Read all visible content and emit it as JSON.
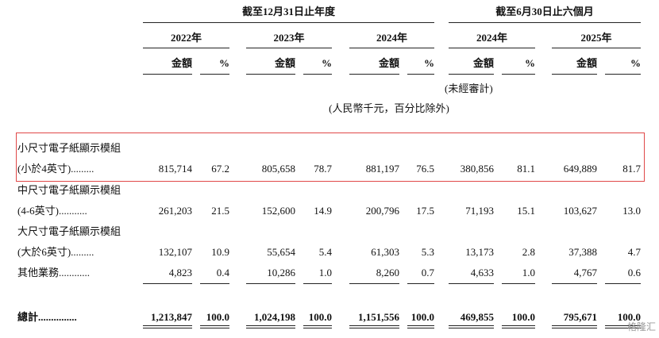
{
  "header": {
    "period_groups": [
      "截至12月31日止年度",
      "截至6月30日止六個月"
    ],
    "columns": [
      {
        "year": "2022年",
        "amount": "金額",
        "percent": "%"
      },
      {
        "year": "2023年",
        "amount": "金額",
        "percent": "%"
      },
      {
        "year": "2024年",
        "amount": "金額",
        "percent": "%"
      },
      {
        "year": "2024年",
        "amount": "金額",
        "percent": "%"
      },
      {
        "year": "2025年",
        "amount": "金額",
        "percent": "%"
      }
    ],
    "unaudited": "(未經審計)",
    "unit_note": "(人民幣千元，百分比除外)"
  },
  "table": {
    "rows": [
      {
        "label": [
          "小尺寸電子紙顯示模組",
          "(小於4英寸)........."
        ],
        "values": [
          "815,714",
          "67.2",
          "805,658",
          "78.7",
          "881,197",
          "76.5",
          "380,856",
          "81.1",
          "649,889",
          "81.7"
        ]
      },
      {
        "label": [
          "中尺寸電子紙顯示模組",
          "(4-6英寸)..........."
        ],
        "values": [
          "261,203",
          "21.5",
          "152,600",
          "14.9",
          "200,796",
          "17.5",
          "71,193",
          "15.1",
          "103,627",
          "13.0"
        ]
      },
      {
        "label": [
          "大尺寸電子紙顯示模組",
          "(大於6英寸)........."
        ],
        "values": [
          "132,107",
          "10.9",
          "55,654",
          "5.4",
          "61,303",
          "5.3",
          "13,173",
          "2.8",
          "37,388",
          "4.7"
        ]
      },
      {
        "label": [
          "其他業務............"
        ],
        "values": [
          "4,823",
          "0.4",
          "10,286",
          "1.0",
          "8,260",
          "0.7",
          "4,633",
          "1.0",
          "4,767",
          "0.6"
        ]
      },
      {
        "label": [
          "總計..............."
        ],
        "values": [
          "1,213,847",
          "100.0",
          "1,024,198",
          "100.0",
          "1,151,556",
          "100.0",
          "469,855",
          "100.0",
          "795,671",
          "100.0"
        ]
      }
    ]
  },
  "watermark": "格隆汇"
}
